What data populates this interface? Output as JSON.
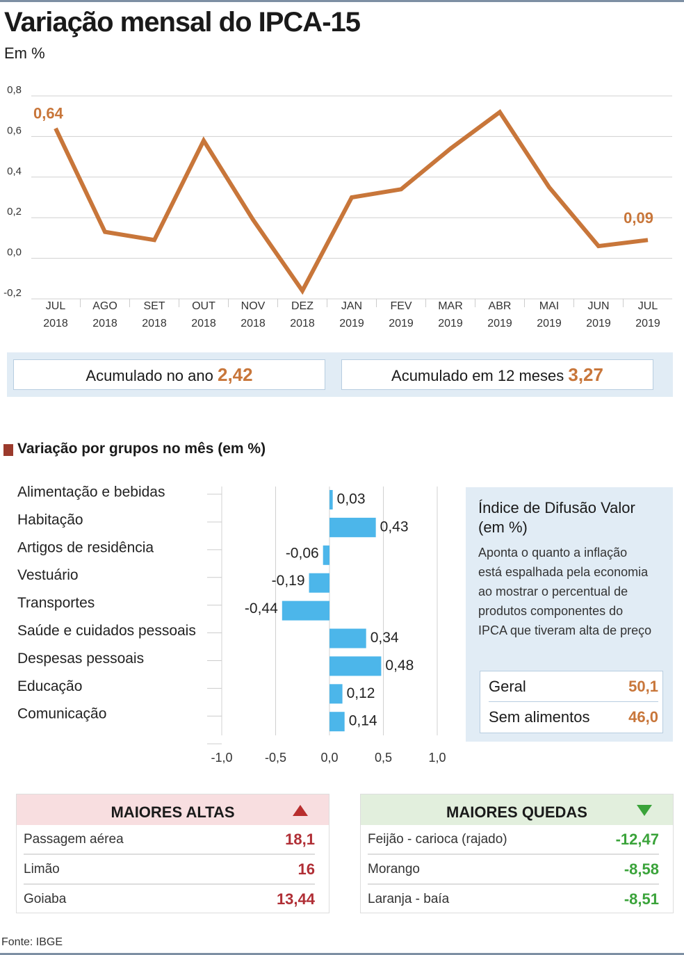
{
  "chart_data": [
    {
      "type": "line",
      "title": "Variação mensal do IPCA-15",
      "subtitle": "Em %",
      "categories": [
        "JUL 2018",
        "AGO 2018",
        "SET 2018",
        "OUT 2018",
        "NOV 2018",
        "DEZ 2018",
        "JAN 2019",
        "FEV 2019",
        "MAR 2019",
        "ABR 2019",
        "MAI 2019",
        "JUN 2019",
        "JUL 2019"
      ],
      "values": [
        0.64,
        0.13,
        0.09,
        0.58,
        0.19,
        -0.16,
        0.3,
        0.34,
        0.54,
        0.72,
        0.35,
        0.06,
        0.09
      ],
      "value_labels": [
        "0,64",
        null,
        null,
        null,
        null,
        null,
        null,
        null,
        null,
        null,
        null,
        null,
        "0,09"
      ],
      "color": "#c8763a",
      "ylim": [
        -0.2,
        0.8
      ],
      "yticks": [
        {
          "value": 0.8,
          "label": "0,8"
        },
        {
          "value": 0.6,
          "label": "0,6"
        },
        {
          "value": 0.4,
          "label": "0,4"
        },
        {
          "value": 0.2,
          "label": "0,2"
        },
        {
          "value": 0.0,
          "label": "0,0"
        },
        {
          "value": -0.2,
          "label": "-0,2"
        }
      ],
      "grid": true
    },
    {
      "type": "hbar",
      "title": "Variação por grupos no mês (em %)",
      "categories": [
        "Alimentação e bebidas",
        "Habitação",
        "Artigos de residência",
        "Vestuário",
        "Transportes",
        "Saúde e cuidados pessoais",
        "Despesas pessoais",
        "Educação",
        "Comunicação"
      ],
      "values": [
        0.03,
        0.43,
        -0.06,
        -0.19,
        -0.44,
        0.34,
        0.48,
        0.12,
        0.14
      ],
      "value_labels": [
        "0,03",
        "0,43",
        "-0,06",
        "-0,19",
        "-0,44",
        "0,34",
        "0,48",
        "0,12",
        "0,14"
      ],
      "color": "#4cb6ea",
      "xlim": [
        -1.0,
        1.0
      ],
      "xticks": [
        {
          "value": -1.0,
          "label": "-1,0"
        },
        {
          "value": -0.5,
          "label": "-0,5"
        },
        {
          "value": 0.0,
          "label": "0,0"
        },
        {
          "value": 0.5,
          "label": "0,5"
        },
        {
          "value": 1.0,
          "label": "1,0"
        }
      ],
      "grid": true
    }
  ],
  "accumulated": [
    {
      "label": "Acumulado no ano",
      "value": "2,42"
    },
    {
      "label": "Acumulado em 12 meses",
      "value": "3,27"
    }
  ],
  "diffusion": {
    "title": "Índice de Difusão Valor (em %)",
    "description": "Aponta o quanto a inflação está espalhada pela economia ao mostrar o percentual de produtos componentes do IPCA que tiveram alta de preço",
    "rows": [
      [
        "Geral",
        "50,1"
      ],
      [
        "Sem alimentos",
        "46,0"
      ]
    ]
  },
  "top_rises": {
    "title": "MAIORES ALTAS",
    "rows": [
      [
        "Passagem aérea",
        "18,1"
      ],
      [
        "Limão",
        "16"
      ],
      [
        "Goiaba",
        "13,44"
      ]
    ]
  },
  "top_falls": {
    "title": "MAIORES QUEDAS",
    "rows": [
      [
        "Feijão - carioca (rajado)",
        "-12,47"
      ],
      [
        "Morango",
        "-8,58"
      ],
      [
        "Laranja - baía",
        "-8,51"
      ]
    ]
  },
  "source": "Fonte: IBGE"
}
